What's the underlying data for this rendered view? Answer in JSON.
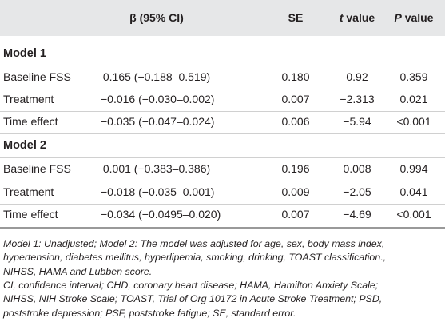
{
  "table": {
    "header": {
      "ci": "β (95% CI)",
      "se": "SE",
      "t": [
        "t",
        "value"
      ],
      "p": [
        "P",
        "value"
      ]
    },
    "groups": [
      {
        "title": "Model 1",
        "rows": [
          [
            "Baseline FSS",
            "0.165 (−0.188–0.519)",
            "0.180",
            "0.92",
            "0.359"
          ],
          [
            "Treatment",
            "−0.016 (−0.030–0.002)",
            "0.007",
            "−2.313",
            "0.021"
          ],
          [
            "Time effect",
            "−0.035 (−0.047–0.024)",
            "0.006",
            "−5.94",
            "<0.001"
          ]
        ]
      },
      {
        "title": "Model 2",
        "rows": [
          [
            "Baseline FSS",
            "0.001 (−0.383–0.386)",
            "0.196",
            "0.008",
            "0.994"
          ],
          [
            "Treatment",
            "−0.018 (−0.035–0.001)",
            "0.009",
            "−2.05",
            "0.041"
          ],
          [
            "Time effect",
            "−0.034 (−0.0495–0.020)",
            "0.007",
            "−4.69",
            "<0.001"
          ]
        ]
      }
    ]
  },
  "footnotes": [
    "Model 1: Unadjusted; Model 2: The model was adjusted for age, sex, body mass index,",
    "hypertension, diabetes mellitus, hyperlipemia, smoking, drinking, TOAST classification.,",
    "NIHSS, HAMA and Lubben score.",
    "CI, confidence interval; CHD, coronary heart disease; HAMA, Hamilton Anxiety Scale;",
    "NIHSS, NIH Stroke Scale; TOAST, Trial of Org 10172 in Acute Stroke Treatment; PSD,",
    "poststroke depression; PSF, poststroke fatigue; SE, standard error."
  ]
}
